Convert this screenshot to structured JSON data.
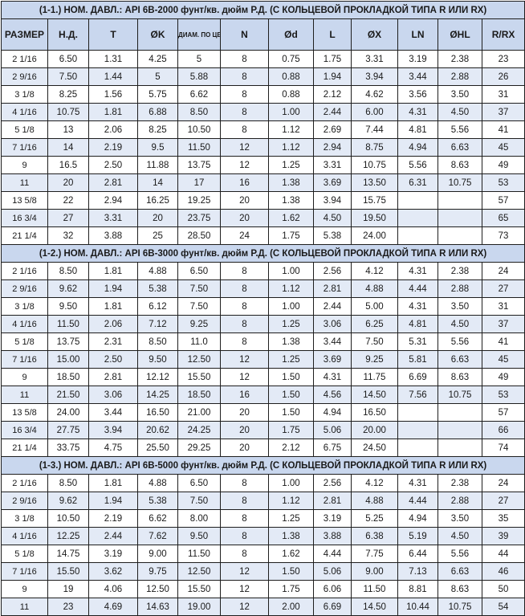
{
  "headers": [
    "РАЗМЕР",
    "Н.Д.",
    "T",
    "ØK",
    "ДИАМ. ПО ЦЕНТР. ОТВ.",
    "N",
    "Ød",
    "L",
    "ØX",
    "LN",
    "ØHL",
    "R/RX"
  ],
  "sections": [
    {
      "title": "(1-1.) НОМ. ДАВЛ.: API 6B-2000 фунт/кв. дюйм Р.Д. (С КОЛЬЦЕВОЙ ПРОКЛАДКОЙ ТИПА R ИЛИ RX)",
      "rows": [
        [
          "2 1/16",
          "6.50",
          "1.31",
          "4.25",
          "5",
          "8",
          "0.75",
          "1.75",
          "3.31",
          "3.19",
          "2.38",
          "23"
        ],
        [
          "2 9/16",
          "7.50",
          "1.44",
          "5",
          "5.88",
          "8",
          "0.88",
          "1.94",
          "3.94",
          "3.44",
          "2.88",
          "26"
        ],
        [
          "3 1/8",
          "8.25",
          "1.56",
          "5.75",
          "6.62",
          "8",
          "0.88",
          "2.12",
          "4.62",
          "3.56",
          "3.50",
          "31"
        ],
        [
          "4 1/16",
          "10.75",
          "1.81",
          "6.88",
          "8.50",
          "8",
          "1.00",
          "2.44",
          "6.00",
          "4.31",
          "4.50",
          "37"
        ],
        [
          "5 1/8",
          "13",
          "2.06",
          "8.25",
          "10.50",
          "8",
          "1.12",
          "2.69",
          "7.44",
          "4.81",
          "5.56",
          "41"
        ],
        [
          "7 1/16",
          "14",
          "2.19",
          "9.5",
          "11.50",
          "12",
          "1.12",
          "2.94",
          "8.75",
          "4.94",
          "6.63",
          "45"
        ],
        [
          "9",
          "16.5",
          "2.50",
          "11.88",
          "13.75",
          "12",
          "1.25",
          "3.31",
          "10.75",
          "5.56",
          "8.63",
          "49"
        ],
        [
          "11",
          "20",
          "2.81",
          "14",
          "17",
          "16",
          "1.38",
          "3.69",
          "13.50",
          "6.31",
          "10.75",
          "53"
        ],
        [
          "13 5/8",
          "22",
          "2.94",
          "16.25",
          "19.25",
          "20",
          "1.38",
          "3.94",
          "15.75",
          "",
          "",
          "57"
        ],
        [
          "16 3/4",
          "27",
          "3.31",
          "20",
          "23.75",
          "20",
          "1.62",
          "4.50",
          "19.50",
          "",
          "",
          "65"
        ],
        [
          "21 1/4",
          "32",
          "3.88",
          "25",
          "28.50",
          "24",
          "1.75",
          "5.38",
          "24.00",
          "",
          "",
          "73"
        ]
      ]
    },
    {
      "title": "(1-2.) НОМ. ДАВЛ.: API 6B-3000 фунт/кв. дюйм Р.Д. (С КОЛЬЦЕВОЙ ПРОКЛАДКОЙ ТИПА R ИЛИ RX)",
      "rows": [
        [
          "2 1/16",
          "8.50",
          "1.81",
          "4.88",
          "6.50",
          "8",
          "1.00",
          "2.56",
          "4.12",
          "4.31",
          "2.38",
          "24"
        ],
        [
          "2 9/16",
          "9.62",
          "1.94",
          "5.38",
          "7.50",
          "8",
          "1.12",
          "2.81",
          "4.88",
          "4.44",
          "2.88",
          "27"
        ],
        [
          "3 1/8",
          "9.50",
          "1.81",
          "6.12",
          "7.50",
          "8",
          "1.00",
          "2.44",
          "5.00",
          "4.31",
          "3.50",
          "31"
        ],
        [
          "4 1/16",
          "11.50",
          "2.06",
          "7.12",
          "9.25",
          "8",
          "1.25",
          "3.06",
          "6.25",
          "4.81",
          "4.50",
          "37"
        ],
        [
          "5 1/8",
          "13.75",
          "2.31",
          "8.50",
          "11.0",
          "8",
          "1.38",
          "3.44",
          "7.50",
          "5.31",
          "5.56",
          "41"
        ],
        [
          "7 1/16",
          "15.00",
          "2.50",
          "9.50",
          "12.50",
          "12",
          "1.25",
          "3.69",
          "9.25",
          "5.81",
          "6.63",
          "45"
        ],
        [
          "9",
          "18.50",
          "2.81",
          "12.12",
          "15.50",
          "12",
          "1.50",
          "4.31",
          "11.75",
          "6.69",
          "8.63",
          "49"
        ],
        [
          "11",
          "21.50",
          "3.06",
          "14.25",
          "18.50",
          "16",
          "1.50",
          "4.56",
          "14.50",
          "7.56",
          "10.75",
          "53"
        ],
        [
          "13 5/8",
          "24.00",
          "3.44",
          "16.50",
          "21.00",
          "20",
          "1.50",
          "4.94",
          "16.50",
          "",
          "",
          "57"
        ],
        [
          "16 3/4",
          "27.75",
          "3.94",
          "20.62",
          "24.25",
          "20",
          "1.75",
          "5.06",
          "20.00",
          "",
          "",
          "66"
        ],
        [
          "21 1/4",
          "33.75",
          "4.75",
          "25.50",
          "29.25",
          "20",
          "2.12",
          "6.75",
          "24.50",
          "",
          "",
          "74"
        ]
      ]
    },
    {
      "title": "(1-3.) НОМ. ДАВЛ.: API 6B-5000 фунт/кв. дюйм Р.Д. (С КОЛЬЦЕВОЙ ПРОКЛАДКОЙ ТИПА R ИЛИ RX)",
      "rows": [
        [
          "2 1/16",
          "8.50",
          "1.81",
          "4.88",
          "6.50",
          "8",
          "1.00",
          "2.56",
          "4.12",
          "4.31",
          "2.38",
          "24"
        ],
        [
          "2 9/16",
          "9.62",
          "1.94",
          "5.38",
          "7.50",
          "8",
          "1.12",
          "2.81",
          "4.88",
          "4.44",
          "2.88",
          "27"
        ],
        [
          "3 1/8",
          "10.50",
          "2.19",
          "6.62",
          "8.00",
          "8",
          "1.25",
          "3.19",
          "5.25",
          "4.94",
          "3.50",
          "35"
        ],
        [
          "4 1/16",
          "12.25",
          "2.44",
          "7.62",
          "9.50",
          "8",
          "1.38",
          "3.88",
          "6.38",
          "5.19",
          "4.50",
          "39"
        ],
        [
          "5 1/8",
          "14.75",
          "3.19",
          "9.00",
          "11.50",
          "8",
          "1.62",
          "4.44",
          "7.75",
          "6.44",
          "5.56",
          "44"
        ],
        [
          "7 1/16",
          "15.50",
          "3.62",
          "9.75",
          "12.50",
          "12",
          "1.50",
          "5.06",
          "9.00",
          "7.13",
          "6.63",
          "46"
        ],
        [
          "9",
          "19",
          "4.06",
          "12.50",
          "15.50",
          "12",
          "1.75",
          "6.06",
          "11.50",
          "8.81",
          "8.63",
          "50"
        ],
        [
          "11",
          "23",
          "4.69",
          "14.63",
          "19.00",
          "12",
          "2.00",
          "6.69",
          "14.50",
          "10.44",
          "10.75",
          "54"
        ]
      ]
    }
  ]
}
